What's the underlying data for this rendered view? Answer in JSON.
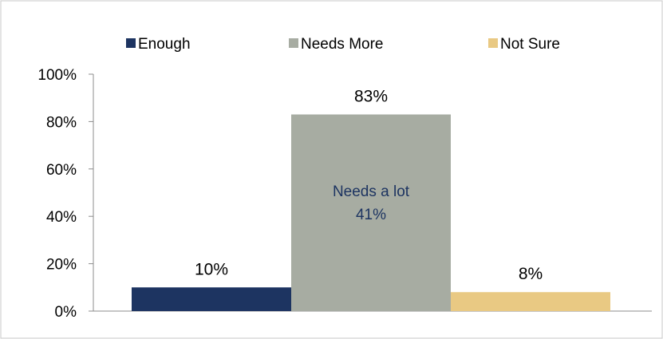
{
  "chart_data": {
    "type": "bar",
    "title": "",
    "xlabel": "",
    "ylabel": "",
    "ylim": [
      0,
      100
    ],
    "y_ticks": [
      "0%",
      "20%",
      "40%",
      "60%",
      "80%",
      "100%"
    ],
    "y_tick_values": [
      0,
      20,
      40,
      60,
      80,
      100
    ],
    "grid": false,
    "legend_placement": "top",
    "series": [
      {
        "name": "Enough",
        "value": 10,
        "label": "10%",
        "color": "#1d3461"
      },
      {
        "name": "Needs More",
        "value": 83,
        "label": "83%",
        "color": "#a7aca2"
      },
      {
        "name": "Not Sure",
        "value": 8,
        "label": "8%",
        "color": "#e9c983"
      }
    ],
    "annotation": {
      "series": "Needs More",
      "line1": "Needs a lot",
      "line2": "41%",
      "value": 41,
      "color": "#1d3461"
    }
  }
}
